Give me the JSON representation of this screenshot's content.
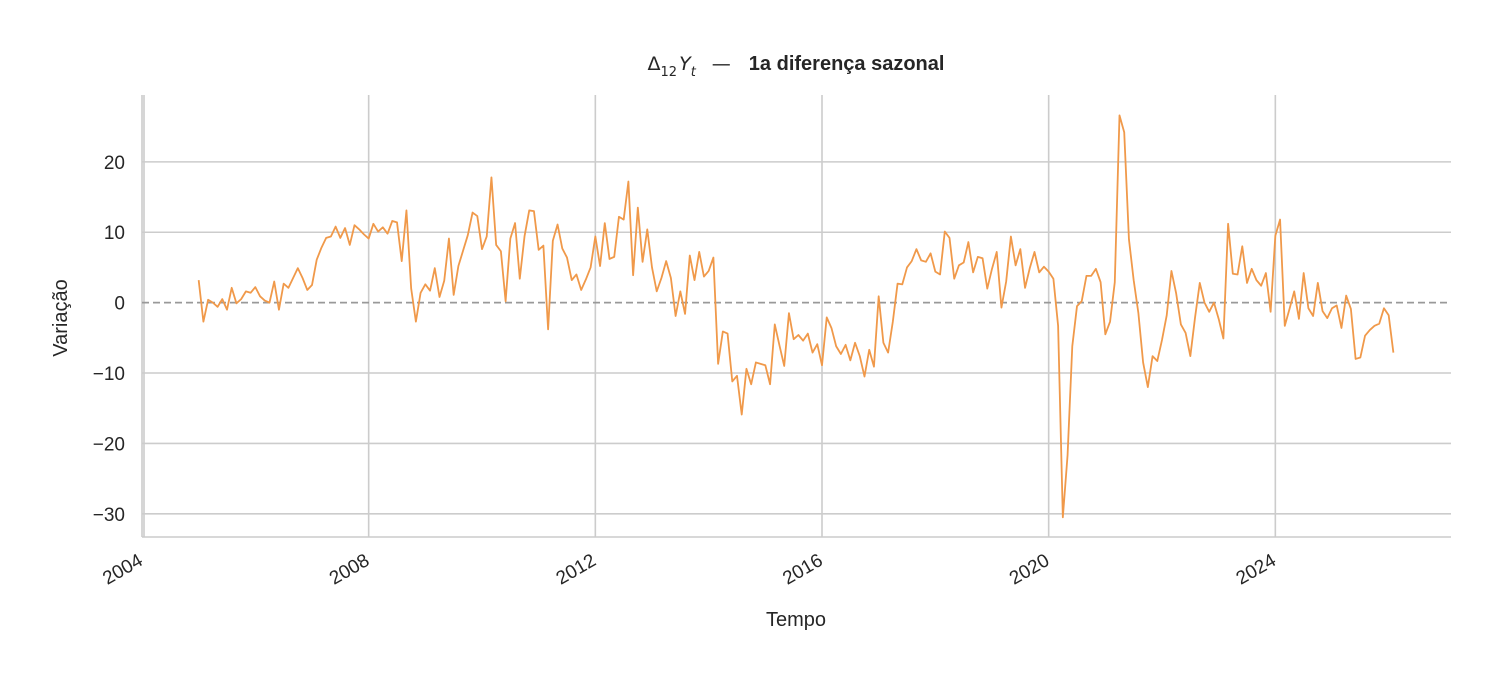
{
  "chart_data": {
    "type": "line",
    "title": {
      "math": "Δ",
      "math_sub": "12",
      "math_var": "Y",
      "math_var_sub": "t",
      "separator": "—",
      "text": "1a diferença sazonal"
    },
    "xlabel": "Tempo",
    "ylabel": "Variação",
    "x_ticks": [
      "2004",
      "2008",
      "2012",
      "2016",
      "2020",
      "2024"
    ],
    "y_ticks": [
      "−30",
      "−20",
      "−10",
      "0",
      "10",
      "20"
    ],
    "xlim": [
      2004.0,
      2027.1
    ],
    "ylim": [
      -33.3,
      29.5
    ],
    "grid": true,
    "reference_line": {
      "y": 0,
      "style": "dashed",
      "color": "#999999"
    },
    "colors": {
      "series": "#f0994a",
      "grid": "#cccccc",
      "text": "#262626"
    },
    "series": [
      {
        "x_start": "2005-01",
        "frequency": "monthly",
        "values": [
          3.2,
          -2.7,
          0.4,
          0.0,
          -0.6,
          0.5,
          -1.0,
          2.1,
          -0.1,
          0.5,
          1.6,
          1.4,
          2.2,
          0.9,
          0.3,
          0.0,
          3.0,
          -1.0,
          2.7,
          2.1,
          3.5,
          4.9,
          3.5,
          1.8,
          2.5,
          6.1,
          7.8,
          9.2,
          9.4,
          10.8,
          9.2,
          10.6,
          8.2,
          11.0,
          10.4,
          9.7,
          9.1,
          11.2,
          10.1,
          10.7,
          9.8,
          11.6,
          11.4,
          5.9,
          13.1,
          2.0,
          -2.7,
          1.4,
          2.6,
          1.7,
          4.9,
          0.8,
          3.1,
          9.1,
          1.1,
          5.2,
          7.4,
          9.6,
          12.8,
          12.3,
          7.6,
          9.4,
          17.8,
          8.2,
          7.3,
          0.2,
          9.1,
          11.3,
          3.4,
          9.4,
          13.1,
          13.0,
          7.5,
          8.1,
          -3.8,
          8.8,
          11.1,
          7.7,
          6.4,
          3.2,
          4.0,
          1.8,
          3.3,
          5.0,
          9.4,
          5.2,
          11.3,
          6.2,
          6.5,
          12.2,
          11.8,
          17.2,
          3.9,
          13.5,
          5.8,
          10.4,
          5.0,
          1.6,
          3.5,
          5.9,
          3.5,
          -1.9,
          1.6,
          -1.6,
          6.7,
          3.2,
          7.2,
          3.7,
          4.5,
          6.4,
          -8.7,
          -4.1,
          -4.4,
          -11.2,
          -10.4,
          -15.9,
          -9.4,
          -11.6,
          -8.5,
          -8.7,
          -8.9,
          -11.6,
          -3.1,
          -6.1,
          -9.0,
          -1.5,
          -5.2,
          -4.6,
          -5.4,
          -4.4,
          -7.1,
          -5.9,
          -8.9,
          -2.1,
          -3.6,
          -6.2,
          -7.3,
          -6.0,
          -8.2,
          -5.7,
          -7.6,
          -10.5,
          -6.7,
          -9.1,
          0.9,
          -5.7,
          -7.1,
          -2.7,
          2.7,
          2.6,
          5.0,
          5.9,
          7.6,
          6.0,
          5.8,
          7.0,
          4.4,
          4.0,
          10.1,
          9.2,
          3.4,
          5.3,
          5.7,
          8.6,
          4.3,
          6.5,
          6.3,
          2.0,
          4.8,
          7.2,
          -0.7,
          3.0,
          9.4,
          5.3,
          7.6,
          2.1,
          4.9,
          7.2,
          4.3,
          5.1,
          4.4,
          3.4,
          -3.3,
          -30.5,
          -21.7,
          -6.2,
          -0.5,
          0.2,
          3.8,
          3.8,
          4.8,
          2.9,
          -4.5,
          -2.7,
          2.9,
          26.6,
          24.2,
          9.0,
          3.2,
          -1.5,
          -8.5,
          -12.0,
          -7.6,
          -8.3,
          -5.3,
          -1.8,
          4.5,
          1.3,
          -3.1,
          -4.3,
          -7.6,
          -2.1,
          2.8,
          0.0,
          -1.3,
          0.0,
          -2.3,
          -5.1,
          11.2,
          4.1,
          4.0,
          8.0,
          2.8,
          4.8,
          3.2,
          2.4,
          4.2,
          -1.3,
          9.5,
          11.8,
          -3.3,
          -0.9,
          1.6,
          -2.3,
          4.2,
          -0.8,
          -1.9,
          2.8,
          -1.2,
          -2.2,
          -0.8,
          -0.4,
          -3.6,
          1.0,
          -0.9,
          -8.0,
          -7.8,
          -4.7,
          -3.9,
          -3.3,
          -3.0,
          -0.8,
          -1.8,
          -7.1
        ]
      }
    ]
  }
}
